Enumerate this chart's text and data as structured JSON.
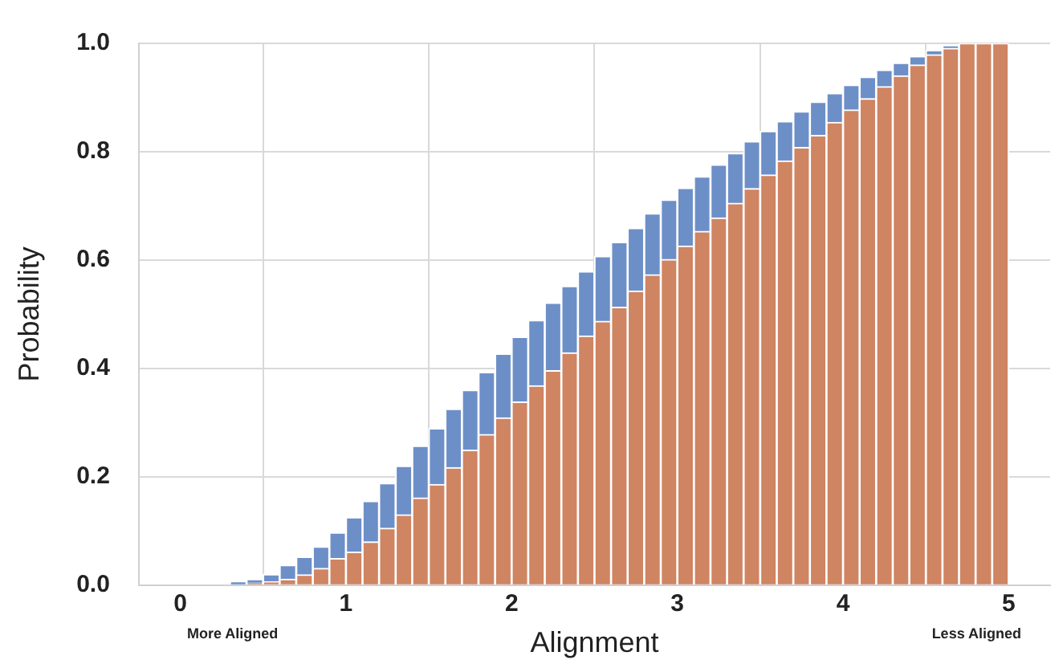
{
  "chart_data": {
    "type": "bar",
    "xlabel": "Alignment",
    "ylabel": "Probability",
    "x": [
      0.05,
      0.15,
      0.25,
      0.35,
      0.45,
      0.55,
      0.65,
      0.75,
      0.85,
      0.95,
      1.05,
      1.15,
      1.25,
      1.35,
      1.45,
      1.55,
      1.65,
      1.75,
      1.85,
      1.95,
      2.05,
      2.15,
      2.25,
      2.35,
      2.45,
      2.55,
      2.65,
      2.75,
      2.85,
      2.95,
      3.05,
      3.15,
      3.25,
      3.35,
      3.45,
      3.55,
      3.65,
      3.75,
      3.85,
      3.95,
      4.05,
      4.15,
      4.25,
      4.35,
      4.45,
      4.55,
      4.65,
      4.75,
      4.85,
      4.95
    ],
    "series": [
      {
        "color": "#cf8462",
        "values": [
          0,
          0,
          0,
          0,
          0.004,
          0.006,
          0.011,
          0.019,
          0.031,
          0.049,
          0.061,
          0.08,
          0.105,
          0.13,
          0.161,
          0.186,
          0.217,
          0.249,
          0.278,
          0.309,
          0.338,
          0.368,
          0.396,
          0.429,
          0.46,
          0.487,
          0.513,
          0.543,
          0.573,
          0.601,
          0.626,
          0.653,
          0.678,
          0.705,
          0.732,
          0.757,
          0.783,
          0.808,
          0.83,
          0.854,
          0.877,
          0.898,
          0.92,
          0.94,
          0.96,
          0.979,
          0.991,
          1,
          1,
          1
        ]
      },
      {
        "color": "#6d8fc8",
        "values": [
          0,
          0,
          0,
          0.007,
          0.007,
          0.014,
          0.026,
          0.033,
          0.04,
          0.048,
          0.064,
          0.075,
          0.083,
          0.09,
          0.096,
          0.103,
          0.108,
          0.111,
          0.115,
          0.118,
          0.12,
          0.121,
          0.125,
          0.123,
          0.119,
          0.12,
          0.12,
          0.116,
          0.113,
          0.11,
          0.107,
          0.101,
          0.098,
          0.092,
          0.087,
          0.081,
          0.073,
          0.066,
          0.062,
          0.054,
          0.046,
          0.04,
          0.031,
          0.024,
          0.016,
          0.008,
          0.005,
          0,
          0,
          0
        ]
      }
    ],
    "stacked": true,
    "xlim": [
      -0.25,
      5.25
    ],
    "xticks": [
      0,
      1,
      2,
      3,
      4,
      5
    ],
    "ylim": [
      0,
      1
    ],
    "yticks": [
      {
        "value": 0,
        "label": "0.0"
      },
      0.2,
      0.4,
      0.6,
      0.8,
      {
        "value": 1,
        "label": "1.0"
      }
    ],
    "grid": true,
    "legend": false,
    "annotations": [
      "More Aligned",
      "Less Aligned"
    ]
  }
}
